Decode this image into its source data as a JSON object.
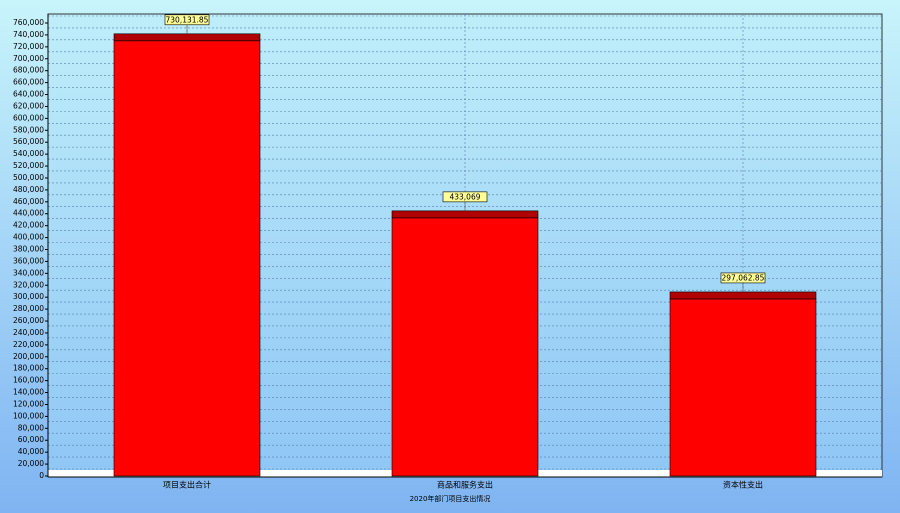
{
  "chart_data": {
    "type": "bar",
    "x_label": "2020年部门项目支出情况",
    "categories": [
      "项目支出合计",
      "商品和服务支出",
      "资本性支出"
    ],
    "values": [
      730131.85,
      433069,
      297062.85
    ],
    "value_labels": [
      "730,131.85",
      "433,069",
      "297,062.85"
    ],
    "color": "#ff0000",
    "ylim": [
      0,
      760000
    ],
    "yticks": [
      0,
      {
        "value": 20000,
        "label": "20,000"
      },
      {
        "value": 40000,
        "label": "40,000"
      },
      {
        "value": 60000,
        "label": "60,000"
      },
      {
        "value": 80000,
        "label": "80,000"
      },
      {
        "value": 100000,
        "label": "100,000"
      },
      {
        "value": 120000,
        "label": "120,000"
      },
      {
        "value": 140000,
        "label": "140,000"
      },
      {
        "value": 160000,
        "label": "160,000"
      },
      {
        "value": 180000,
        "label": "180,000"
      },
      {
        "value": 200000,
        "label": "200,000"
      },
      {
        "value": 220000,
        "label": "220,000"
      },
      {
        "value": 240000,
        "label": "240,000"
      },
      {
        "value": 260000,
        "label": "260,000"
      },
      {
        "value": 280000,
        "label": "280,000"
      },
      {
        "value": 300000,
        "label": "300,000"
      },
      {
        "value": 320000,
        "label": "320,000"
      },
      {
        "value": 340000,
        "label": "340,000"
      },
      {
        "value": 360000,
        "label": "360,000"
      },
      {
        "value": 380000,
        "label": "380,000"
      },
      {
        "value": 400000,
        "label": "400,000"
      },
      {
        "value": 420000,
        "label": "420,000"
      },
      {
        "value": 440000,
        "label": "440,000"
      },
      {
        "value": 460000,
        "label": "460,000"
      },
      {
        "value": 480000,
        "label": "480,000"
      },
      {
        "value": 500000,
        "label": "500,000"
      },
      {
        "value": 520000,
        "label": "520,000"
      },
      {
        "value": 540000,
        "label": "540,000"
      },
      {
        "value": 560000,
        "label": "560,000"
      },
      {
        "value": 580000,
        "label": "580,000"
      },
      {
        "value": 600000,
        "label": "600,000"
      },
      {
        "value": 620000,
        "label": "620,000"
      },
      {
        "value": 640000,
        "label": "640,000"
      },
      {
        "value": 660000,
        "label": "660,000"
      },
      {
        "value": 680000,
        "label": "680,000"
      },
      {
        "value": 700000,
        "label": "700,000"
      },
      {
        "value": 720000,
        "label": "720,000"
      },
      {
        "value": 740000,
        "label": "740,000"
      },
      {
        "value": 760000,
        "label": "760,000"
      }
    ],
    "grid": true
  }
}
